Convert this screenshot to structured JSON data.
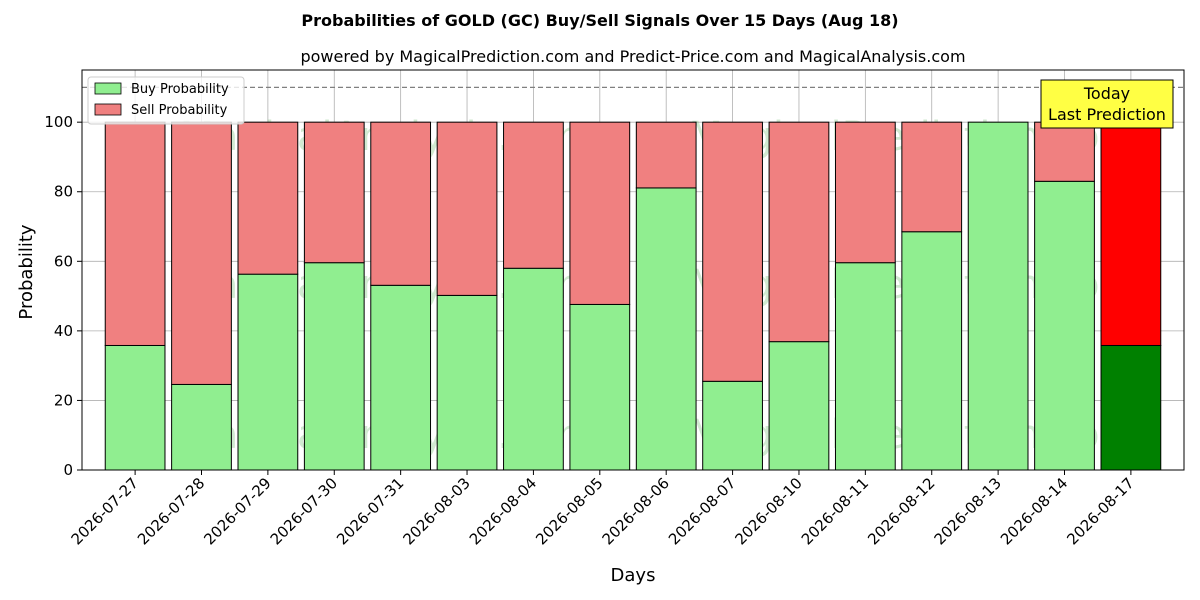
{
  "chart_data": {
    "type": "bar",
    "stacked": true,
    "title": "Probabilities of GOLD (GC) Buy/Sell Signals Over 15 Days (Aug 18)",
    "subtitle": "powered by MagicalPrediction.com and Predict-Price.com and MagicalAnalysis.com",
    "xlabel": "Days",
    "ylabel": "Probability",
    "ylim": [
      0,
      115
    ],
    "yticks": [
      0,
      20,
      40,
      60,
      80,
      100
    ],
    "reference_line": 110,
    "grid": true,
    "legend_position": "top-left",
    "categories": [
      "2026-07-27",
      "2026-07-28",
      "2026-07-29",
      "2026-07-30",
      "2026-07-31",
      "2026-08-03",
      "2026-08-04",
      "2026-08-05",
      "2026-08-06",
      "2026-08-07",
      "2026-08-10",
      "2026-08-11",
      "2026-08-12",
      "2026-08-13",
      "2026-08-14",
      "2026-08-17"
    ],
    "series": [
      {
        "name": "Buy Probability",
        "color": "#90ee90",
        "highlight_color": "#008000",
        "values": [
          35.8,
          24.6,
          56.3,
          59.6,
          53.1,
          50.2,
          58.0,
          47.6,
          81.1,
          25.5,
          36.9,
          59.6,
          68.5,
          100.0,
          83.0,
          35.8
        ]
      },
      {
        "name": "Sell Probability",
        "color": "#f08080",
        "highlight_color": "#ff0000",
        "values": [
          64.2,
          75.4,
          43.7,
          40.4,
          46.9,
          49.8,
          42.0,
          52.4,
          18.9,
          74.5,
          63.1,
          40.4,
          31.5,
          0.0,
          17.0,
          64.2
        ]
      }
    ],
    "highlight_index": 15,
    "annotation": {
      "lines": [
        "Today",
        "Last Prediction"
      ],
      "background": "#ffff44"
    },
    "watermarks": [
      "MagicalAnalysis.com",
      "MagicalPrediction.com"
    ]
  }
}
